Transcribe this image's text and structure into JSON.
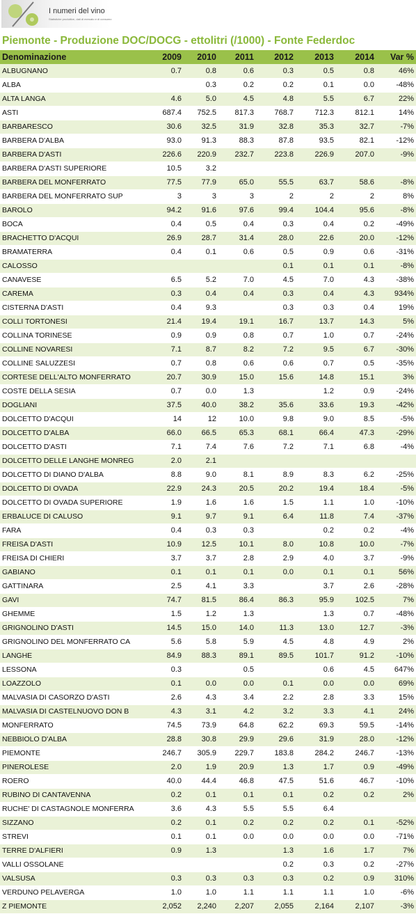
{
  "logo": {
    "name": "I numeri del vino",
    "tagline": "Statistiche produttive, dati di mercato e di consumo"
  },
  "title": "Piemonte - Produzione DOC/DOCG - ettolitri (/1000) - Fonte Federdoc",
  "colors": {
    "header_bg": "#9ac14a",
    "title": "#8ab83a",
    "row_alt": "#eaf2d7"
  },
  "columns": [
    "Denominazione",
    "2009",
    "2010",
    "2011",
    "2012",
    "2013",
    "2014",
    "Var %"
  ],
  "rows": [
    [
      "ALBUGNANO",
      "0.7",
      "0.8",
      "0.6",
      "0.3",
      "0.5",
      "0.8",
      "46%"
    ],
    [
      "ALBA",
      "",
      "0.3",
      "0.2",
      "0.2",
      "0.1",
      "0.0",
      "-48%"
    ],
    [
      "ALTA LANGA",
      "4.6",
      "5.0",
      "4.5",
      "4.8",
      "5.5",
      "6.7",
      "22%"
    ],
    [
      "ASTI",
      "687.4",
      "752.5",
      "817.3",
      "768.7",
      "712.3",
      "812.1",
      "14%"
    ],
    [
      "BARBARESCO",
      "30.6",
      "32.5",
      "31.9",
      "32.8",
      "35.3",
      "32.7",
      "-7%"
    ],
    [
      "BARBERA D'ALBA",
      "93.0",
      "91.3",
      "88.3",
      "87.8",
      "93.5",
      "82.1",
      "-12%"
    ],
    [
      "BARBERA D'ASTI",
      "226.6",
      "220.9",
      "232.7",
      "223.8",
      "226.9",
      "207.0",
      "-9%"
    ],
    [
      "BARBERA D'ASTI SUPERIORE",
      "10.5",
      "3.2",
      "",
      "",
      "",
      "",
      ""
    ],
    [
      "BARBERA DEL MONFERRATO",
      "77.5",
      "77.9",
      "65.0",
      "55.5",
      "63.7",
      "58.6",
      "-8%"
    ],
    [
      "BARBERA DEL MONFERRATO SUP",
      "3",
      "3",
      "3",
      "2",
      "2",
      "2",
      "8%"
    ],
    [
      "BAROLO",
      "94.2",
      "91.6",
      "97.6",
      "99.4",
      "104.4",
      "95.6",
      "-8%"
    ],
    [
      "BOCA",
      "0.4",
      "0.5",
      "0.4",
      "0.3",
      "0.4",
      "0.2",
      "-49%"
    ],
    [
      "BRACHETTO D'ACQUI",
      "26.9",
      "28.7",
      "31.4",
      "28.0",
      "22.6",
      "20.0",
      "-12%"
    ],
    [
      "BRAMATERRA",
      "0.4",
      "0.1",
      "0.6",
      "0.5",
      "0.9",
      "0.6",
      "-31%"
    ],
    [
      "CALOSSO",
      "",
      "",
      "",
      "0.1",
      "0.1",
      "0.1",
      "-8%"
    ],
    [
      "CANAVESE",
      "6.5",
      "5.2",
      "7.0",
      "4.5",
      "7.0",
      "4.3",
      "-38%"
    ],
    [
      "CAREMA",
      "0.3",
      "0.4",
      "0.4",
      "0.3",
      "0.4",
      "4.3",
      "934%"
    ],
    [
      "CISTERNA D'ASTI",
      "0.4",
      "9.3",
      "",
      "0.3",
      "0.3",
      "0.4",
      "19%"
    ],
    [
      "COLLI TORTONESI",
      "21.4",
      "19.4",
      "19.1",
      "16.7",
      "13.7",
      "14.3",
      "5%"
    ],
    [
      "COLLINA TORINESE",
      "0.9",
      "0.9",
      "0.8",
      "0.7",
      "1.0",
      "0.7",
      "-24%"
    ],
    [
      "COLLINE NOVARESI",
      "7.1",
      "8.7",
      "8.2",
      "7.2",
      "9.5",
      "6.7",
      "-30%"
    ],
    [
      "COLLINE SALUZZESI",
      "0.7",
      "0.8",
      "0.6",
      "0.6",
      "0.7",
      "0.5",
      "-35%"
    ],
    [
      "CORTESE DELL'ALTO MONFERRATO",
      "20.7",
      "30.9",
      "15.0",
      "15.6",
      "14.8",
      "15.1",
      "3%"
    ],
    [
      "COSTE DELLA SESIA",
      "0.7",
      "0.0",
      "1.3",
      "",
      "1.2",
      "0.9",
      "-24%"
    ],
    [
      "DOGLIANI",
      "37.5",
      "40.0",
      "38.2",
      "35.6",
      "33.6",
      "19.3",
      "-42%"
    ],
    [
      "DOLCETTO D'ACQUI",
      "14",
      "12",
      "10.0",
      "9.8",
      "9.0",
      "8.5",
      "-5%"
    ],
    [
      "DOLCETTO D'ALBA",
      "66.0",
      "66.5",
      "65.3",
      "68.1",
      "66.4",
      "47.3",
      "-29%"
    ],
    [
      "DOLCETTO D'ASTI",
      "7.1",
      "7.4",
      "7.6",
      "7.2",
      "7.1",
      "6.8",
      "-4%"
    ],
    [
      "DOLCETTO DELLE LANGHE MONREG",
      "2.0",
      "2.1",
      "",
      "",
      "",
      "",
      ""
    ],
    [
      "DOLCETTO DI DIANO D'ALBA",
      "8.8",
      "9.0",
      "8.1",
      "8.9",
      "8.3",
      "6.2",
      "-25%"
    ],
    [
      "DOLCETTO DI OVADA",
      "22.9",
      "24.3",
      "20.5",
      "20.2",
      "19.4",
      "18.4",
      "-5%"
    ],
    [
      "DOLCETTO DI OVADA SUPERIORE",
      "1.9",
      "1.6",
      "1.6",
      "1.5",
      "1.1",
      "1.0",
      "-10%"
    ],
    [
      "ERBALUCE DI CALUSO",
      "9.1",
      "9.7",
      "9.1",
      "6.4",
      "11.8",
      "7.4",
      "-37%"
    ],
    [
      "FARA",
      "0.4",
      "0.3",
      "0.3",
      "",
      "0.2",
      "0.2",
      "-4%"
    ],
    [
      "FREISA D'ASTI",
      "10.9",
      "12.5",
      "10.1",
      "8.0",
      "10.8",
      "10.0",
      "-7%"
    ],
    [
      "FREISA DI CHIERI",
      "3.7",
      "3.7",
      "2.8",
      "2.9",
      "4.0",
      "3.7",
      "-9%"
    ],
    [
      "GABIANO",
      "0.1",
      "0.1",
      "0.1",
      "0.0",
      "0.1",
      "0.1",
      "56%"
    ],
    [
      "GATTINARA",
      "2.5",
      "4.1",
      "3.3",
      "",
      "3.7",
      "2.6",
      "-28%"
    ],
    [
      "GAVI",
      "74.7",
      "81.5",
      "86.4",
      "86.3",
      "95.9",
      "102.5",
      "7%"
    ],
    [
      "GHEMME",
      "1.5",
      "1.2",
      "1.3",
      "",
      "1.3",
      "0.7",
      "-48%"
    ],
    [
      "GRIGNOLINO D'ASTI",
      "14.5",
      "15.0",
      "14.0",
      "11.3",
      "13.0",
      "12.7",
      "-3%"
    ],
    [
      "GRIGNOLINO DEL MONFERRATO CA",
      "5.6",
      "5.8",
      "5.9",
      "4.5",
      "4.8",
      "4.9",
      "2%"
    ],
    [
      "LANGHE",
      "84.9",
      "88.3",
      "89.1",
      "89.5",
      "101.7",
      "91.2",
      "-10%"
    ],
    [
      "LESSONA",
      "0.3",
      "",
      "0.5",
      "",
      "0.6",
      "4.5",
      "647%"
    ],
    [
      "LOAZZOLO",
      "0.1",
      "0.0",
      "0.0",
      "0.1",
      "0.0",
      "0.0",
      "69%"
    ],
    [
      "MALVASIA DI CASORZO D'ASTI",
      "2.6",
      "4.3",
      "3.4",
      "2.2",
      "2.8",
      "3.3",
      "15%"
    ],
    [
      "MALVASIA DI CASTELNUOVO DON B",
      "4.3",
      "3.1",
      "4.2",
      "3.2",
      "3.3",
      "4.1",
      "24%"
    ],
    [
      "MONFERRATO",
      "74.5",
      "73.9",
      "64.8",
      "62.2",
      "69.3",
      "59.5",
      "-14%"
    ],
    [
      "NEBBIOLO D'ALBA",
      "28.8",
      "30.8",
      "29.9",
      "29.6",
      "31.9",
      "28.0",
      "-12%"
    ],
    [
      "PIEMONTE",
      "246.7",
      "305.9",
      "229.7",
      "183.8",
      "284.2",
      "246.7",
      "-13%"
    ],
    [
      "PINEROLESE",
      "2.0",
      "1.9",
      "20.9",
      "1.3",
      "1.7",
      "0.9",
      "-49%"
    ],
    [
      "ROERO",
      "40.0",
      "44.4",
      "46.8",
      "47.5",
      "51.6",
      "46.7",
      "-10%"
    ],
    [
      "RUBINO DI CANTAVENNA",
      "0.2",
      "0.1",
      "0.1",
      "0.1",
      "0.2",
      "0.2",
      "2%"
    ],
    [
      "RUCHE' DI CASTAGNOLE MONFERRA",
      "3.6",
      "4.3",
      "5.5",
      "5.5",
      "6.4",
      "",
      ""
    ],
    [
      "SIZZANO",
      "0.2",
      "0.1",
      "0.2",
      "0.2",
      "0.2",
      "0.1",
      "-52%"
    ],
    [
      "STREVI",
      "0.1",
      "0.1",
      "0.0",
      "0.0",
      "0.0",
      "0.0",
      "-71%"
    ],
    [
      "TERRE D'ALFIERI",
      "0.9",
      "1.3",
      "",
      "1.3",
      "1.6",
      "1.7",
      "7%"
    ],
    [
      "VALLI OSSOLANE",
      "",
      "",
      "",
      "0.2",
      "0.3",
      "0.2",
      "-27%"
    ],
    [
      "VALSUSA",
      "0.3",
      "0.3",
      "0.3",
      "0.3",
      "0.2",
      "0.9",
      "310%"
    ],
    [
      "VERDUNO PELAVERGA",
      "1.0",
      "1.0",
      "1.1",
      "1.1",
      "1.1",
      "1.0",
      "-6%"
    ],
    [
      "Z PIEMONTE",
      "2,052",
      "2,240",
      "2,207",
      "2,055",
      "2,164",
      "2,107",
      "-3%"
    ]
  ]
}
